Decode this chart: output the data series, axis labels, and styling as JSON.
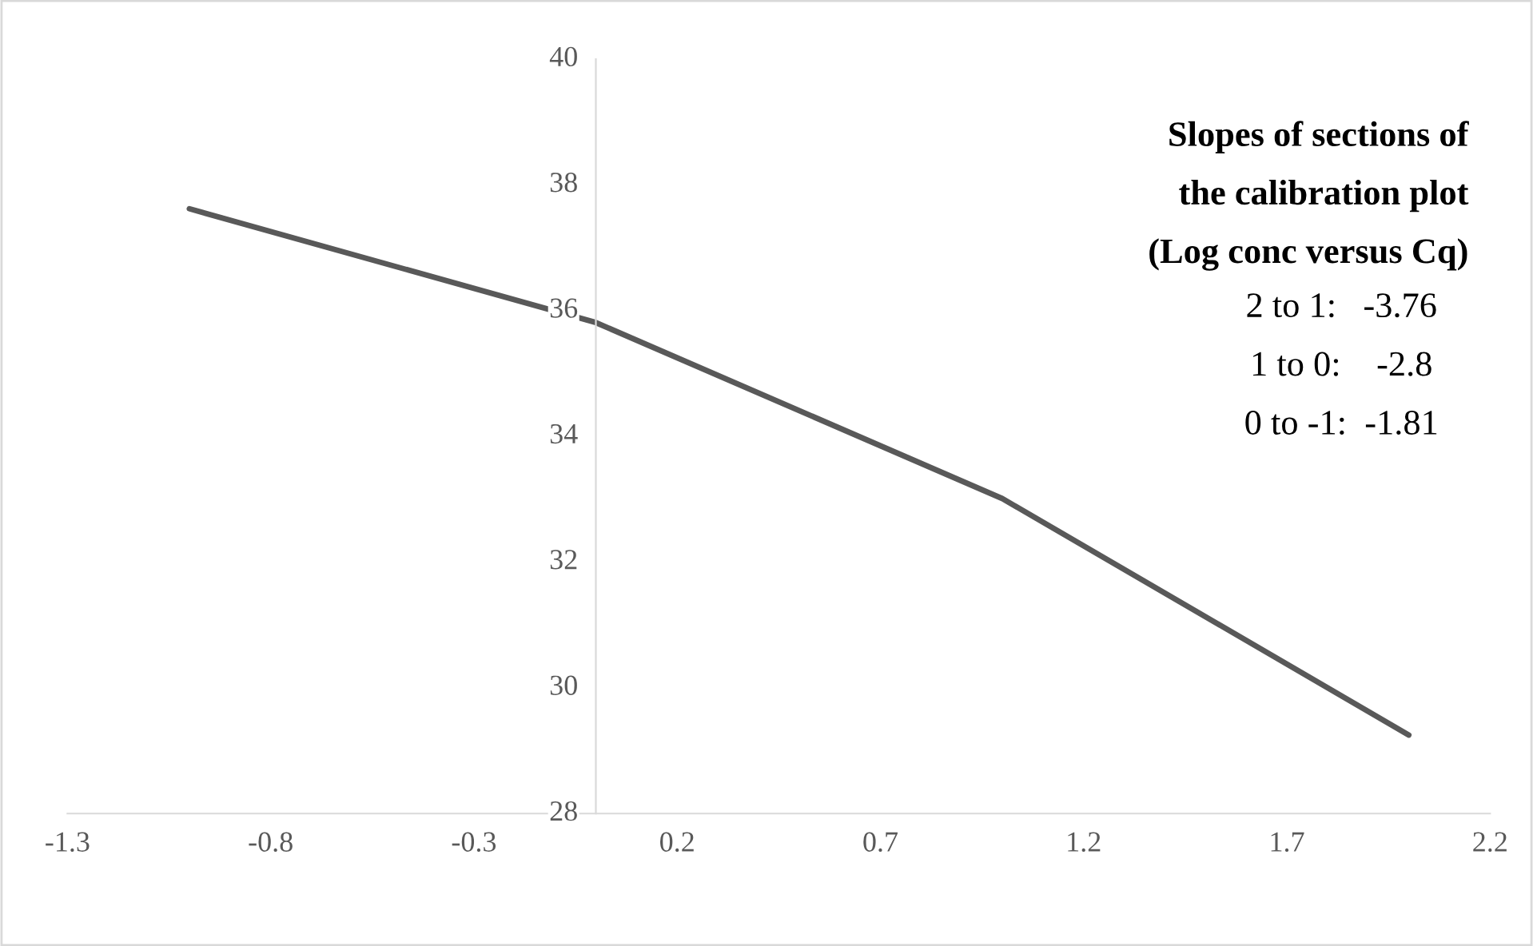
{
  "chart_data": {
    "type": "line",
    "x": [
      -1,
      0,
      1,
      2
    ],
    "series": [
      {
        "color": "#595959",
        "values": [
          37.62,
          35.81,
          33.01,
          29.25
        ]
      }
    ],
    "xlim": [
      -1.3,
      2.2
    ],
    "xticks": [
      -1.3,
      -0.8,
      -0.3,
      0.2,
      0.7,
      1.2,
      1.7,
      2.2
    ],
    "ylim": [
      28,
      40
    ],
    "yticks": [
      28,
      30,
      32,
      34,
      36,
      38,
      40
    ],
    "grid": false,
    "legend": false,
    "marker": "none",
    "line_style": "solid",
    "annotations": [
      "Slopes of sections of",
      "the calibration plot",
      "(Log conc versus Cq)",
      "2 to 1:   -3.76",
      "1 to 0:    -2.8",
      "0 to -1:  -1.81"
    ]
  }
}
